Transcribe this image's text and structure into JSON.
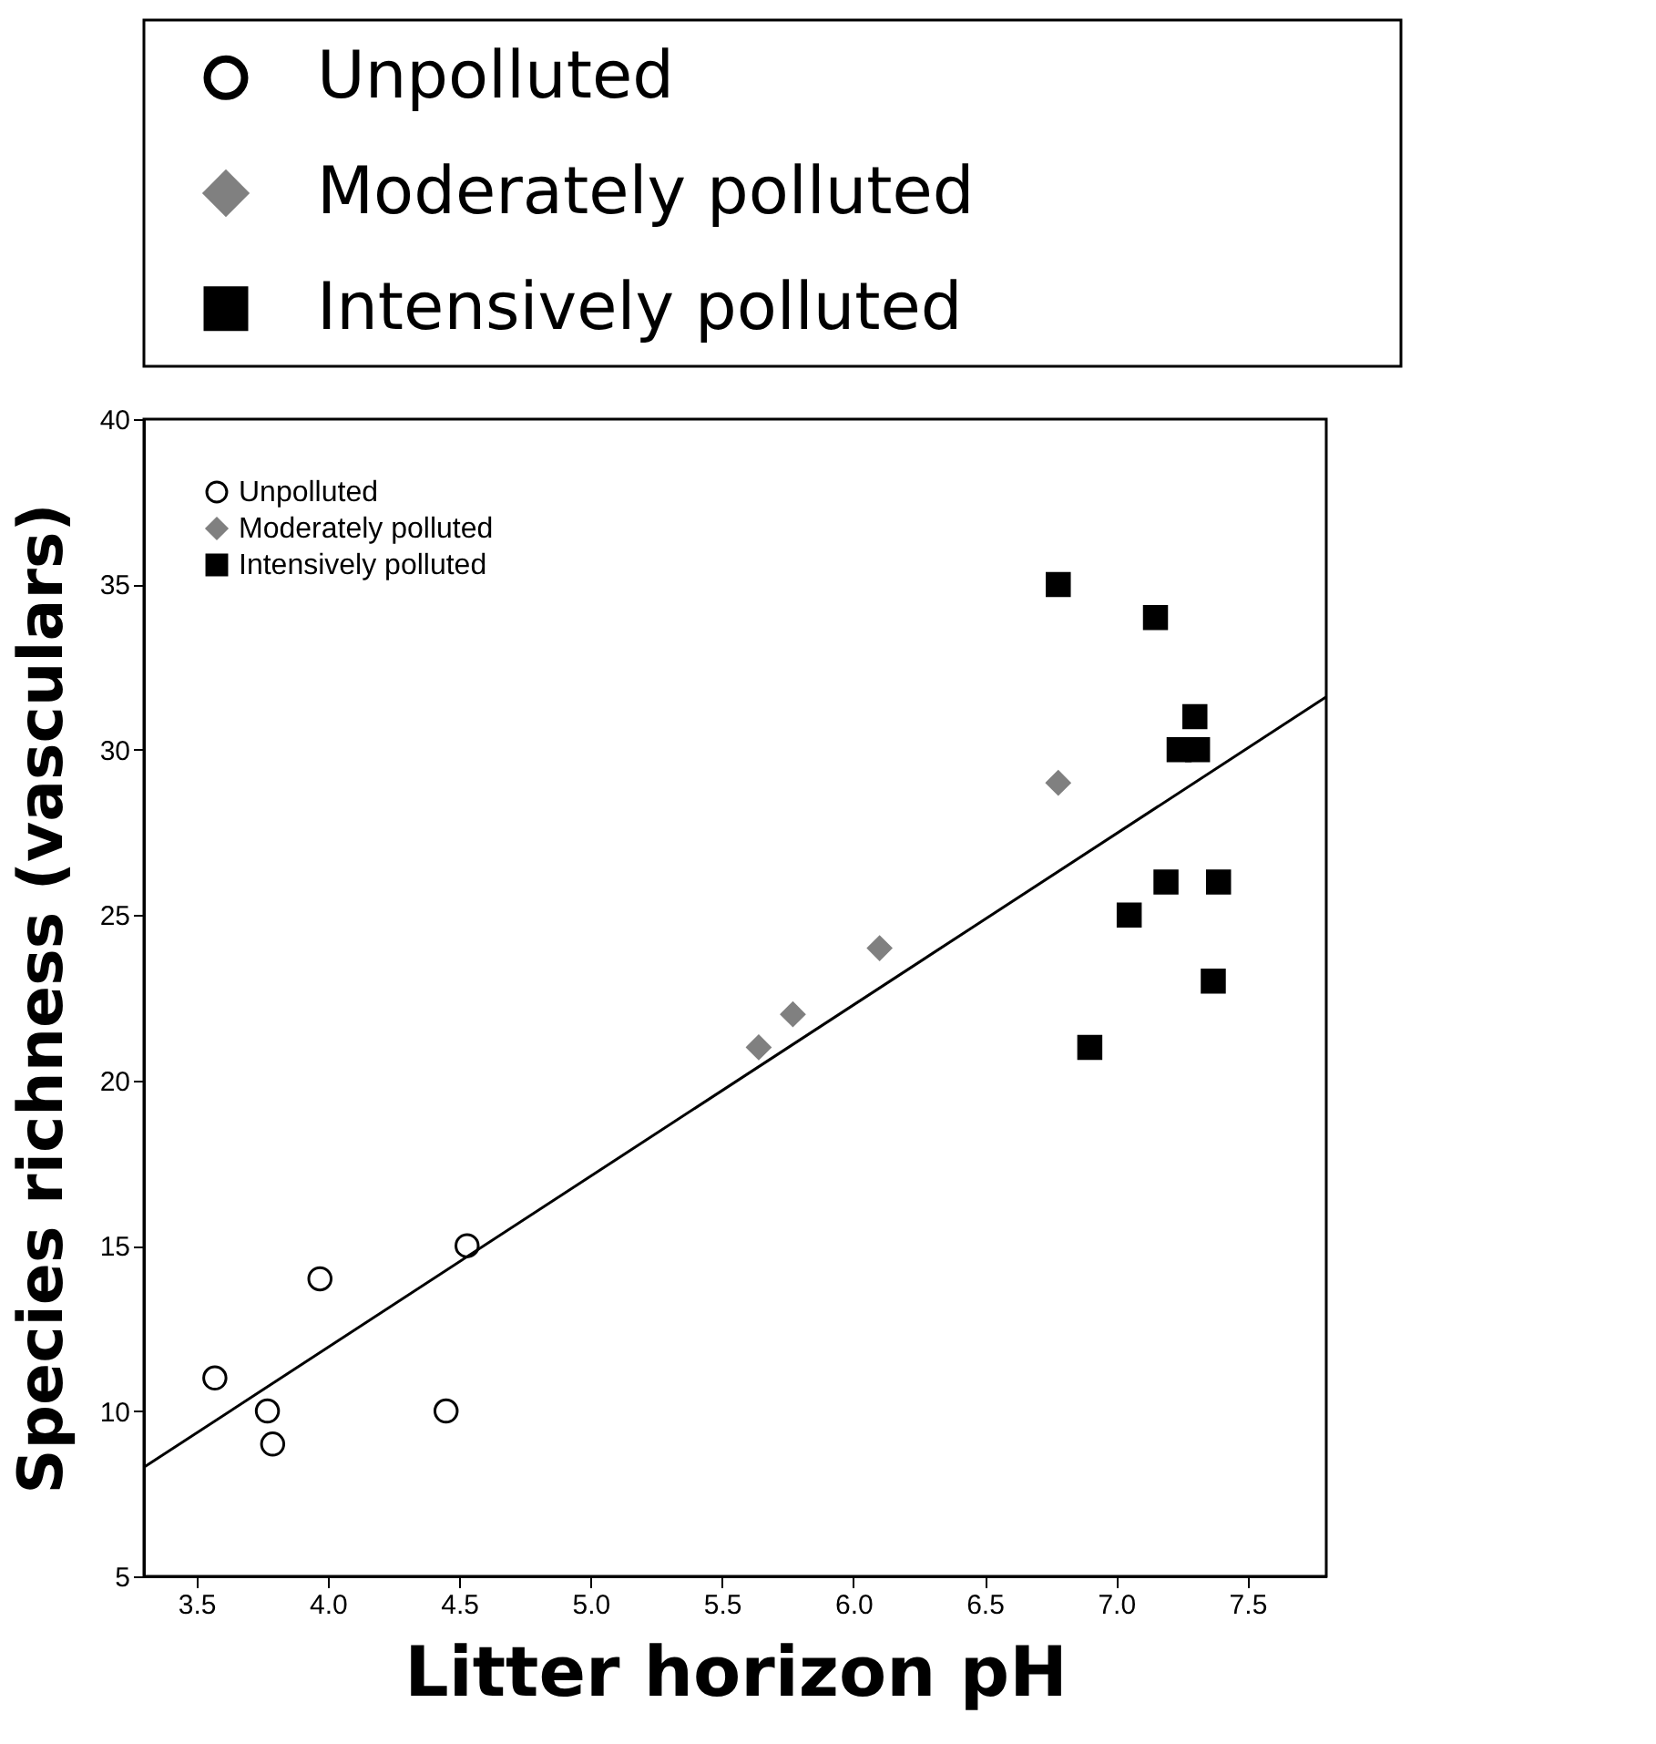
{
  "chart_data": {
    "type": "scatter",
    "xlabel": "Litter horizon pH",
    "ylabel": "Species richness (vasculars)",
    "xlim": [
      3.3,
      7.8
    ],
    "xticks": [
      3.5,
      {
        "value": 4,
        "label": "4.0"
      },
      4.5,
      {
        "value": 5,
        "label": "5.0"
      },
      5.5,
      {
        "value": 6,
        "label": "6.0"
      },
      6.5,
      {
        "value": 7,
        "label": "7.0"
      },
      7.5
    ],
    "ylim": [
      5,
      40
    ],
    "yticks": [
      5,
      10,
      15,
      20,
      25,
      30,
      35,
      40
    ],
    "grid": false,
    "legend": "top left",
    "series": [
      {
        "name": "Unpolluted",
        "color": "#000000",
        "marker": "circle",
        "x": [
          3.57,
          3.77,
          3.79,
          3.97,
          4.45,
          4.53
        ],
        "values": [
          11,
          10,
          9,
          14,
          10,
          15
        ]
      },
      {
        "name": "Moderately polluted",
        "color": "#808080",
        "marker": "diamond",
        "x": [
          5.64,
          5.77,
          6.1,
          6.78
        ],
        "values": [
          21,
          22,
          24,
          29
        ]
      },
      {
        "name": "Intensively polluted",
        "color": "#000000",
        "marker": "square",
        "x": [
          6.78,
          7.15,
          7.3,
          7.24,
          7.31,
          7.19,
          7.39,
          7.05,
          7.37,
          6.9
        ],
        "values": [
          35,
          34,
          31,
          30,
          30,
          26,
          26,
          25,
          23,
          21
        ]
      },
      {
        "type": "line",
        "color": "#000000",
        "x": [
          3.3,
          7.8
        ],
        "values": [
          8.3,
          31.6
        ]
      }
    ]
  }
}
